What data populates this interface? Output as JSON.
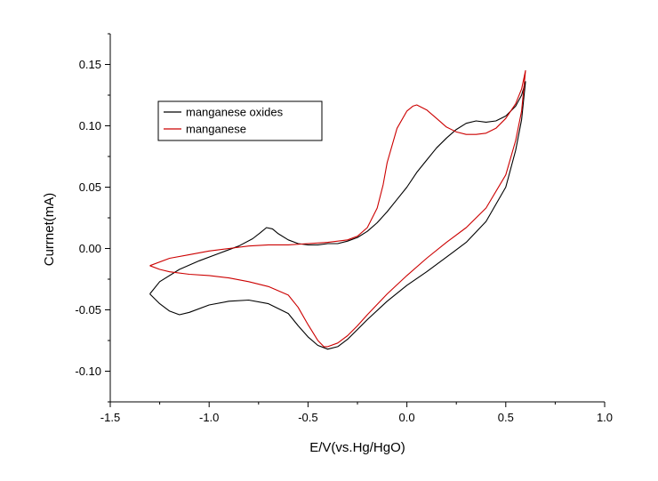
{
  "chart_data": {
    "type": "line",
    "title": "",
    "xlabel": "E/V(vs.Hg/HgO)",
    "ylabel": "Currnet(mA)",
    "xlim": [
      -1.5,
      1.0
    ],
    "ylim": [
      -0.125,
      0.175
    ],
    "xticks": [
      -1.5,
      -1.0,
      -0.5,
      0.0,
      0.5,
      1.0
    ],
    "xtick_labels": [
      "-1.5",
      "-1.0",
      "-0.5",
      "0.0",
      "0.5",
      "1.0"
    ],
    "yticks": [
      -0.1,
      -0.05,
      0.0,
      0.05,
      0.1,
      0.15
    ],
    "ytick_labels": [
      "-0.10",
      "-0.05",
      "0.00",
      "0.05",
      "0.10",
      "0.15"
    ],
    "grid": false,
    "legend_position": "top-left",
    "series": [
      {
        "name": "manganese oxides",
        "color": "#000000",
        "points": [
          [
            -1.3,
            -0.037
          ],
          [
            -1.25,
            -0.045
          ],
          [
            -1.2,
            -0.051
          ],
          [
            -1.15,
            -0.054
          ],
          [
            -1.1,
            -0.052
          ],
          [
            -1.0,
            -0.046
          ],
          [
            -0.9,
            -0.043
          ],
          [
            -0.8,
            -0.042
          ],
          [
            -0.7,
            -0.045
          ],
          [
            -0.6,
            -0.053
          ],
          [
            -0.55,
            -0.063
          ],
          [
            -0.5,
            -0.072
          ],
          [
            -0.45,
            -0.079
          ],
          [
            -0.4,
            -0.082
          ],
          [
            -0.35,
            -0.08
          ],
          [
            -0.3,
            -0.074
          ],
          [
            -0.25,
            -0.066
          ],
          [
            -0.2,
            -0.058
          ],
          [
            -0.1,
            -0.043
          ],
          [
            0.0,
            -0.03
          ],
          [
            0.1,
            -0.019
          ],
          [
            0.2,
            -0.007
          ],
          [
            0.3,
            0.005
          ],
          [
            0.4,
            0.022
          ],
          [
            0.5,
            0.05
          ],
          [
            0.55,
            0.08
          ],
          [
            0.58,
            0.105
          ],
          [
            0.6,
            0.136
          ],
          [
            0.58,
            0.125
          ],
          [
            0.55,
            0.116
          ],
          [
            0.5,
            0.108
          ],
          [
            0.45,
            0.104
          ],
          [
            0.4,
            0.103
          ],
          [
            0.35,
            0.104
          ],
          [
            0.3,
            0.102
          ],
          [
            0.25,
            0.097
          ],
          [
            0.2,
            0.09
          ],
          [
            0.15,
            0.082
          ],
          [
            0.1,
            0.072
          ],
          [
            0.05,
            0.062
          ],
          [
            0.0,
            0.05
          ],
          [
            -0.05,
            0.04
          ],
          [
            -0.1,
            0.03
          ],
          [
            -0.15,
            0.021
          ],
          [
            -0.2,
            0.014
          ],
          [
            -0.25,
            0.009
          ],
          [
            -0.3,
            0.006
          ],
          [
            -0.35,
            0.004
          ],
          [
            -0.4,
            0.004
          ],
          [
            -0.45,
            0.003
          ],
          [
            -0.5,
            0.003
          ],
          [
            -0.55,
            0.004
          ],
          [
            -0.6,
            0.007
          ],
          [
            -0.65,
            0.012
          ],
          [
            -0.68,
            0.016
          ],
          [
            -0.71,
            0.017
          ],
          [
            -0.74,
            0.013
          ],
          [
            -0.78,
            0.008
          ],
          [
            -0.85,
            0.002
          ],
          [
            -0.95,
            -0.004
          ],
          [
            -1.05,
            -0.01
          ],
          [
            -1.15,
            -0.017
          ],
          [
            -1.25,
            -0.027
          ],
          [
            -1.3,
            -0.037
          ]
        ]
      },
      {
        "name": "manganese",
        "color": "#cc0000",
        "points": [
          [
            -1.3,
            -0.014
          ],
          [
            -1.25,
            -0.017
          ],
          [
            -1.2,
            -0.019
          ],
          [
            -1.1,
            -0.021
          ],
          [
            -1.0,
            -0.022
          ],
          [
            -0.9,
            -0.024
          ],
          [
            -0.8,
            -0.027
          ],
          [
            -0.7,
            -0.031
          ],
          [
            -0.6,
            -0.038
          ],
          [
            -0.55,
            -0.048
          ],
          [
            -0.5,
            -0.062
          ],
          [
            -0.45,
            -0.075
          ],
          [
            -0.42,
            -0.08
          ],
          [
            -0.4,
            -0.08
          ],
          [
            -0.35,
            -0.077
          ],
          [
            -0.3,
            -0.071
          ],
          [
            -0.25,
            -0.063
          ],
          [
            -0.2,
            -0.054
          ],
          [
            -0.1,
            -0.037
          ],
          [
            0.0,
            -0.022
          ],
          [
            0.1,
            -0.008
          ],
          [
            0.2,
            0.005
          ],
          [
            0.3,
            0.017
          ],
          [
            0.4,
            0.033
          ],
          [
            0.5,
            0.06
          ],
          [
            0.55,
            0.088
          ],
          [
            0.58,
            0.112
          ],
          [
            0.6,
            0.145
          ],
          [
            0.58,
            0.13
          ],
          [
            0.55,
            0.118
          ],
          [
            0.5,
            0.106
          ],
          [
            0.45,
            0.098
          ],
          [
            0.4,
            0.094
          ],
          [
            0.35,
            0.093
          ],
          [
            0.3,
            0.093
          ],
          [
            0.25,
            0.095
          ],
          [
            0.2,
            0.099
          ],
          [
            0.15,
            0.106
          ],
          [
            0.1,
            0.113
          ],
          [
            0.05,
            0.117
          ],
          [
            0.03,
            0.116
          ],
          [
            0.0,
            0.112
          ],
          [
            -0.05,
            0.098
          ],
          [
            -0.1,
            0.07
          ],
          [
            -0.12,
            0.052
          ],
          [
            -0.15,
            0.033
          ],
          [
            -0.2,
            0.017
          ],
          [
            -0.25,
            0.01
          ],
          [
            -0.3,
            0.007
          ],
          [
            -0.4,
            0.005
          ],
          [
            -0.5,
            0.004
          ],
          [
            -0.6,
            0.003
          ],
          [
            -0.7,
            0.003
          ],
          [
            -0.8,
            0.002
          ],
          [
            -0.9,
            0.0
          ],
          [
            -1.0,
            -0.002
          ],
          [
            -1.1,
            -0.005
          ],
          [
            -1.2,
            -0.008
          ],
          [
            -1.3,
            -0.014
          ]
        ]
      }
    ]
  }
}
